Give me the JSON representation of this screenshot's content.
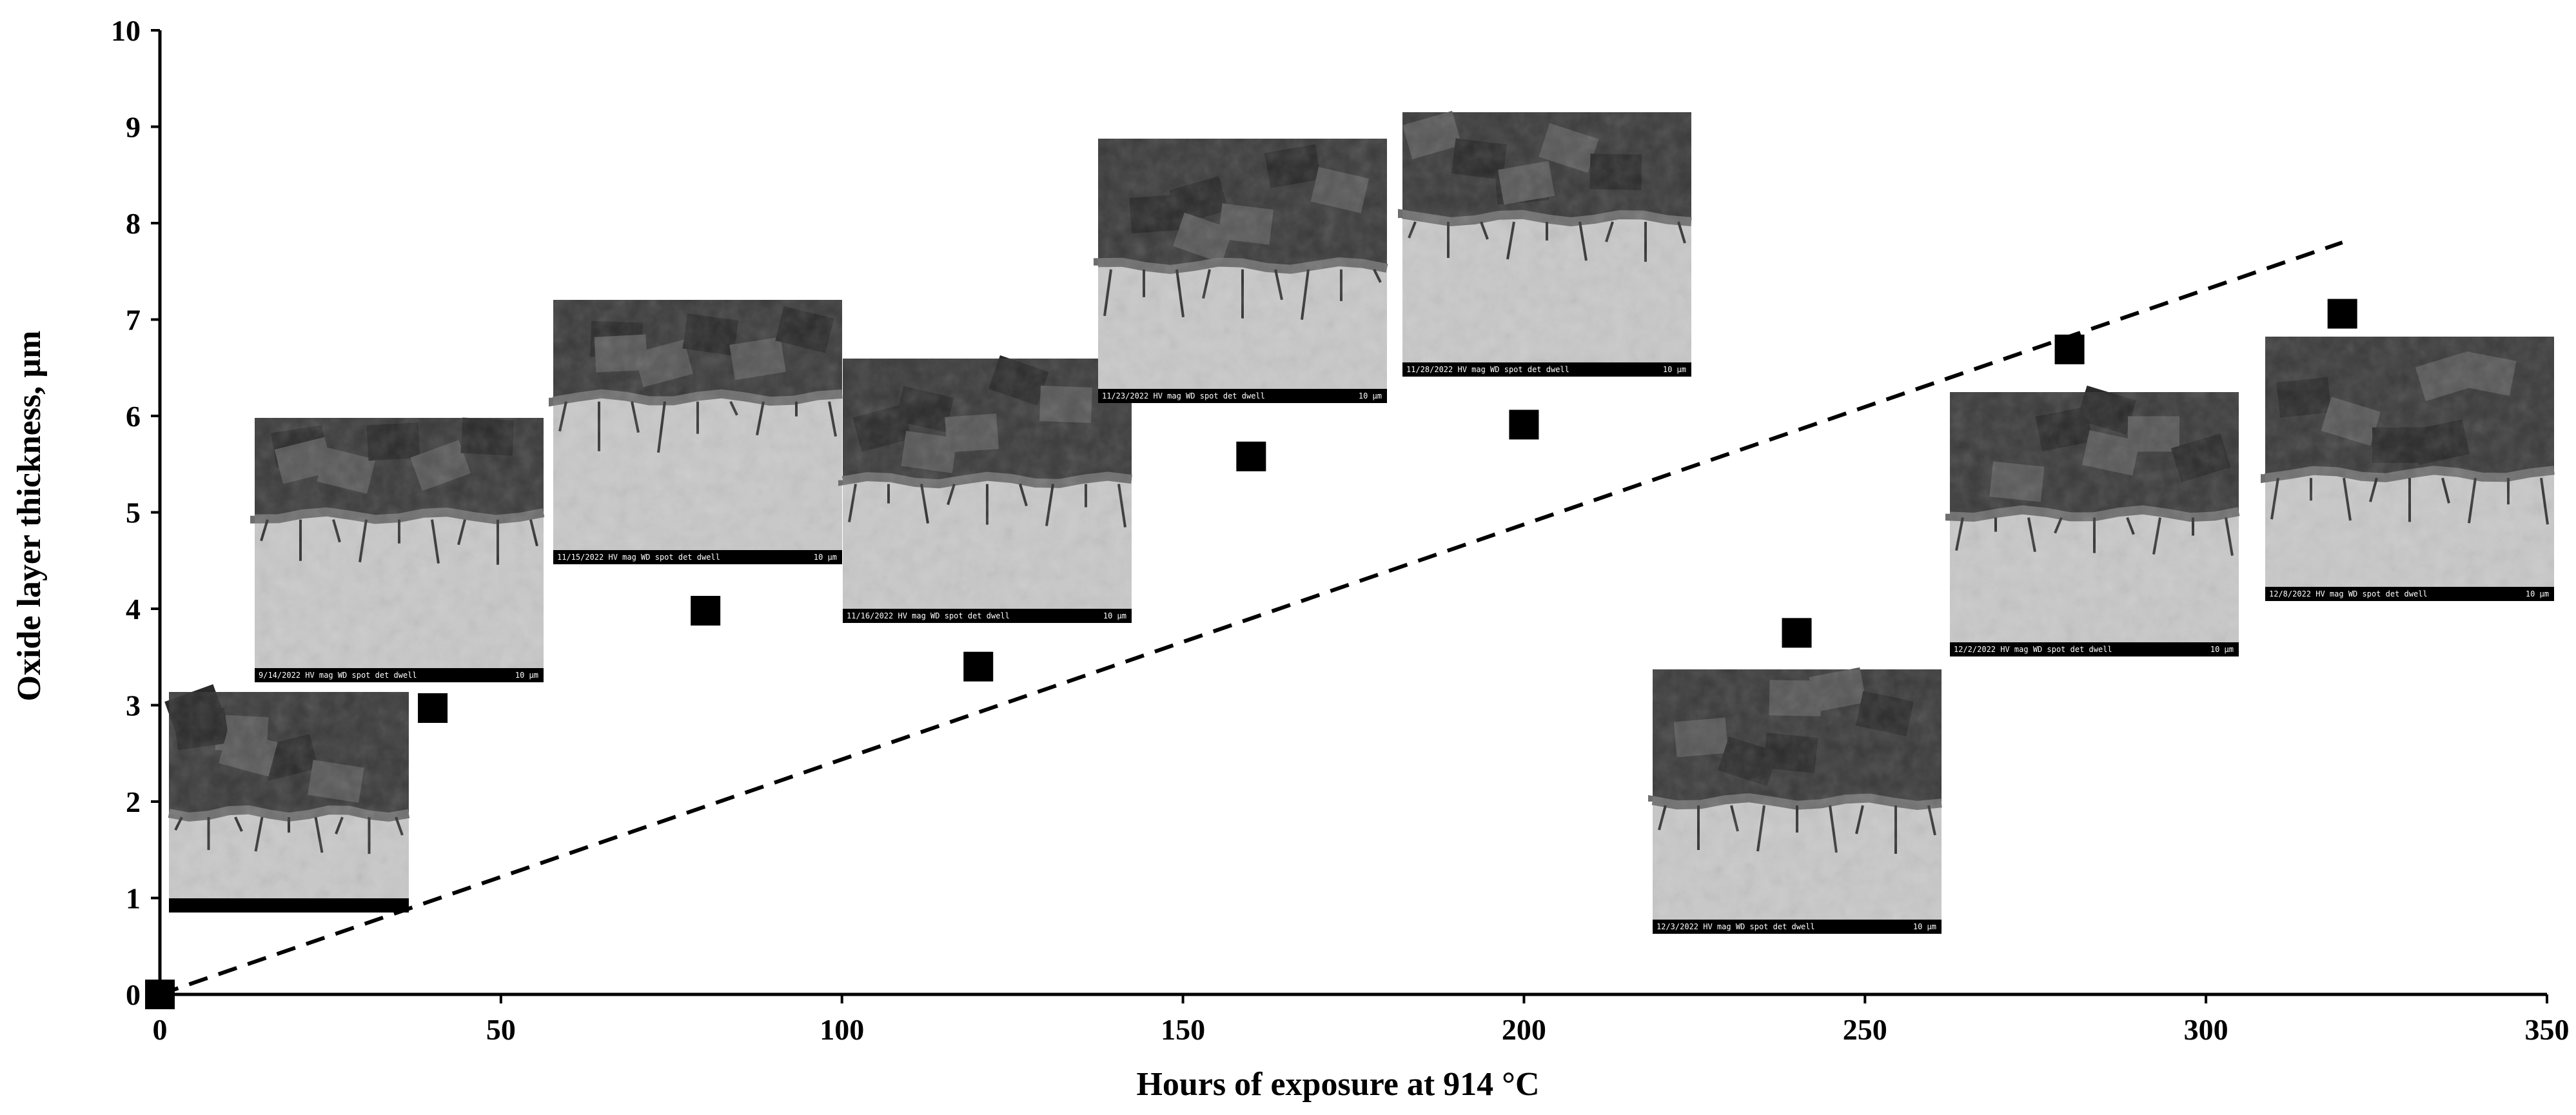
{
  "chart_data": {
    "type": "scatter",
    "title": "",
    "xlabel": "Hours of exposure at 914 °C",
    "ylabel": "Oxide layer thickness, µm",
    "xlim": [
      0,
      350
    ],
    "ylim": [
      0,
      10
    ],
    "x_ticks": [
      "0",
      "50",
      "100",
      "150",
      "200",
      "250",
      "300",
      "350"
    ],
    "y_ticks": [
      "0",
      "1",
      "2",
      "3",
      "4",
      "5",
      "6",
      "7",
      "8",
      "9",
      "10"
    ],
    "grid": false,
    "legend": "none",
    "marker": "square",
    "marker_color": "#000000",
    "series": [
      {
        "x": [
          0,
          40,
          80,
          120,
          160,
          200,
          240,
          280,
          320
        ],
        "y": [
          0,
          2.97,
          3.98,
          3.4,
          5.58,
          5.91,
          3.75,
          6.69,
          7.06
        ]
      }
    ],
    "trendline": {
      "style": "dashed",
      "x": [
        0,
        320
      ],
      "y": [
        0,
        7.8
      ]
    },
    "micrograph_insets": [
      {
        "hours": 40,
        "caption": "9/14/2022 HV mag WD spot det dwell",
        "scale": "10 µm"
      },
      {
        "hours": 80,
        "caption": "11/15/2022 HV mag WD spot det dwell",
        "scale": "10 µm"
      },
      {
        "hours": 120,
        "caption": "11/16/2022 HV mag WD spot det dwell",
        "scale": "10 µm"
      },
      {
        "hours": 160,
        "caption": "11/23/2022 HV mag WD spot det dwell",
        "scale": "10 µm"
      },
      {
        "hours": 200,
        "caption": "11/28/2022 HV mag WD spot det dwell",
        "scale": "10 µm"
      },
      {
        "hours": 240,
        "caption": "12/3/2022 HV mag WD spot det dwell",
        "scale": "10 µm"
      },
      {
        "hours": 280,
        "caption": "12/2/2022 HV mag WD spot det dwell",
        "scale": "10 µm"
      },
      {
        "hours": 320,
        "caption": "12/8/2022 HV mag WD spot det dwell",
        "scale": "10 µm"
      }
    ]
  }
}
